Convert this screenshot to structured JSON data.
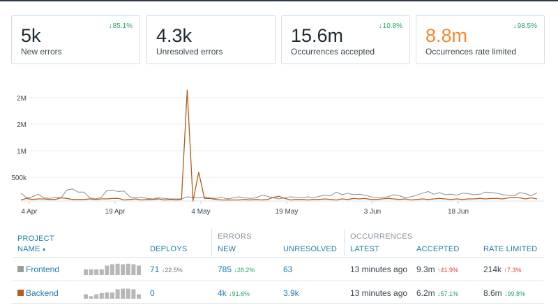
{
  "cards": [
    {
      "value": "5k",
      "label": "New errors",
      "delta": "85.1%",
      "value_color": "#1e2a33"
    },
    {
      "value": "4.3k",
      "label": "Unresolved errors",
      "delta": "",
      "value_color": "#1e2a33"
    },
    {
      "value": "15.6m",
      "label": "Occurrences accepted",
      "delta": "10.8%",
      "value_color": "#1e2a33"
    },
    {
      "value": "8.8m",
      "label": "Occurrences rate limited",
      "delta": "98.5%",
      "value_color": "#f0892f"
    }
  ],
  "chart_data": {
    "type": "line",
    "y_ticks": [
      "500k",
      "1M",
      "2M",
      "2M"
    ],
    "x_ticks": [
      "4 Apr",
      "19 Apr",
      "4 May",
      "19 May",
      "3 Jun",
      "18 Jun"
    ],
    "grid": true,
    "series": [
      {
        "color": "#8c8c8c",
        "values": [
          150000,
          60000,
          80000,
          130000,
          60000,
          50000,
          70000,
          60000,
          210000,
          230000,
          170000,
          170000,
          60000,
          40000,
          70000,
          200000,
          210000,
          180000,
          190000,
          80000,
          60000,
          70000,
          50000,
          40000,
          60000,
          50000,
          40000,
          40000,
          40000,
          80000,
          70000,
          60000,
          80000,
          60000,
          50000,
          70000,
          40000,
          60000,
          80000,
          60000,
          50000,
          60000,
          110000,
          90000,
          60000,
          40000,
          60000,
          80000,
          70000,
          60000,
          80000,
          60000,
          90000,
          110000,
          100000,
          170000,
          120000,
          150000,
          120000,
          130000,
          110000,
          80000,
          60000,
          70000,
          80000,
          120000,
          100000,
          60000,
          80000,
          110000,
          150000,
          180000,
          130000,
          160000,
          120000,
          130000,
          110000,
          150000,
          140000,
          120000,
          130000,
          170000,
          160000,
          150000,
          120000,
          110000,
          100000,
          160000,
          140000,
          100000,
          160000
        ]
      },
      {
        "color": "#b25e1c",
        "values": [
          20000,
          50000,
          30000,
          40000,
          40000,
          30000,
          30000,
          60000,
          50000,
          30000,
          30000,
          30000,
          40000,
          30000,
          40000,
          40000,
          50000,
          50000,
          20000,
          30000,
          40000,
          20000,
          30000,
          30000,
          40000,
          20000,
          30000,
          20000,
          30000,
          2120000,
          0,
          550000,
          50000,
          50000,
          30000,
          20000,
          20000,
          20000,
          20000,
          30000,
          20000,
          30000,
          20000,
          30000,
          70000,
          90000,
          50000,
          20000,
          30000,
          30000,
          20000,
          30000,
          30000,
          40000,
          30000,
          20000,
          40000,
          30000,
          50000,
          40000,
          50000,
          30000,
          30000,
          40000,
          50000,
          40000,
          30000,
          40000,
          20000,
          30000,
          40000,
          30000,
          40000,
          50000,
          40000,
          30000,
          40000,
          30000,
          40000,
          40000,
          50000,
          40000,
          50000,
          50000,
          40000,
          60000,
          70000,
          60000,
          40000,
          60000,
          40000
        ]
      }
    ]
  },
  "table": {
    "headers": {
      "project": "PROJECT",
      "name": "NAME",
      "deploys": "DEPLOYS",
      "errors_group": "ERRORS",
      "new": "NEW",
      "unresolved": "UNRESOLVED",
      "occurrences_group": "OCCURRENCES",
      "latest": "LATEST",
      "accepted": "ACCEPTED",
      "rate_limited": "RATE LIMITED"
    },
    "rows": [
      {
        "name": "Frontend",
        "color": "#9b9b9b",
        "spark": [
          0.45,
          0.45,
          0.45,
          0.45,
          0.75,
          0.85,
          0.9,
          0.85,
          0.9,
          0.85,
          0.75
        ],
        "deploys": "71",
        "deploys_delta": "22.5%",
        "new": "785",
        "new_delta": "28.2%",
        "unresolved": "63",
        "latest": "13 minutes ago",
        "accepted": "9.3m",
        "accepted_delta": "41.9%",
        "rate_limited": "214k",
        "rate_limited_delta": "7.3%"
      },
      {
        "name": "Backend",
        "color": "#b25e1c",
        "spark": [
          0.35,
          0.2,
          0.35,
          0.45,
          0.5,
          0.5,
          0.75,
          0.8,
          0.8,
          0.75,
          0.35
        ],
        "deploys": "0",
        "deploys_delta": "",
        "new": "4k",
        "new_delta": "91.6%",
        "unresolved": "3.9k",
        "latest": "13 minutes ago",
        "accepted": "6.2m",
        "accepted_delta": "57.1%",
        "rate_limited": "8.6m",
        "rate_limited_delta": "99.8%"
      }
    ]
  }
}
